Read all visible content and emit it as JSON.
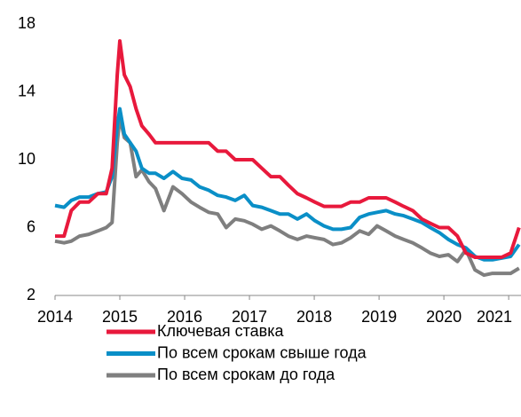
{
  "chart_data": {
    "type": "line",
    "x": [
      2014.0,
      2014.14,
      2014.25,
      2014.38,
      2014.52,
      2014.66,
      2014.79,
      2014.88,
      2014.96,
      2015.0,
      2015.07,
      2015.16,
      2015.25,
      2015.34,
      2015.45,
      2015.55,
      2015.68,
      2015.82,
      2015.96,
      2016.1,
      2016.23,
      2016.37,
      2016.51,
      2016.64,
      2016.78,
      2016.92,
      2017.05,
      2017.19,
      2017.33,
      2017.47,
      2017.6,
      2017.74,
      2017.88,
      2018.01,
      2018.15,
      2018.29,
      2018.42,
      2018.56,
      2018.7,
      2018.84,
      2018.97,
      2019.11,
      2019.25,
      2019.38,
      2019.52,
      2019.66,
      2019.79,
      2019.93,
      2020.07,
      2020.21,
      2020.34,
      2020.48,
      2020.62,
      2020.75,
      2020.89,
      2021.03,
      2021.16
    ],
    "series": [
      {
        "name": "Ключевая ставка",
        "color": "#e8193c",
        "values": [
          5.5,
          5.5,
          7,
          7.5,
          7.5,
          8,
          8,
          9.5,
          15,
          17,
          15,
          14.3,
          13,
          12,
          11.5,
          11,
          11,
          11,
          11,
          11,
          11,
          11,
          10.5,
          10.5,
          10,
          10,
          10,
          9.5,
          9,
          9,
          8.5,
          8,
          7.75,
          7.5,
          7.25,
          7.25,
          7.25,
          7.5,
          7.5,
          7.75,
          7.75,
          7.75,
          7.5,
          7.25,
          7,
          6.5,
          6.25,
          6,
          6,
          5.5,
          4.5,
          4.25,
          4.25,
          4.25,
          4.25,
          4.5,
          6
        ]
      },
      {
        "name": "По всем срокам свыше года",
        "color": "#0a8fc7",
        "values": [
          7.3,
          7.2,
          7.6,
          7.8,
          7.8,
          8,
          8.1,
          9,
          12,
          13,
          11.5,
          11,
          10.5,
          9.5,
          9.2,
          9.2,
          8.9,
          9.3,
          8.9,
          8.8,
          8.4,
          8.2,
          7.9,
          7.8,
          7.6,
          7.9,
          7.3,
          7.2,
          7.0,
          6.8,
          6.8,
          6.5,
          6.8,
          6.4,
          6.1,
          5.9,
          5.9,
          6.0,
          6.6,
          6.8,
          6.9,
          7.0,
          6.8,
          6.7,
          6.5,
          6.3,
          6.0,
          5.7,
          5.3,
          5.0,
          4.8,
          4.3,
          4.1,
          4.1,
          4.2,
          4.3,
          5.0
        ]
      },
      {
        "name": "По всем срокам до года",
        "color": "#7f7f7f",
        "values": [
          5.2,
          5.1,
          5.2,
          5.5,
          5.6,
          5.8,
          6.0,
          6.3,
          11,
          12.5,
          11.3,
          11,
          9.0,
          9.4,
          8.7,
          8.3,
          7.0,
          8.4,
          8.0,
          7.5,
          7.2,
          6.9,
          6.8,
          6.0,
          6.5,
          6.4,
          6.2,
          5.9,
          6.1,
          5.8,
          5.5,
          5.3,
          5.5,
          5.4,
          5.3,
          5.0,
          5.1,
          5.4,
          5.8,
          5.6,
          6.1,
          5.8,
          5.5,
          5.3,
          5.1,
          4.8,
          4.5,
          4.3,
          4.4,
          4.0,
          4.7,
          3.5,
          3.2,
          3.3,
          3.3,
          3.3,
          3.6
        ]
      }
    ],
    "xlim": [
      2014,
      2021.19
    ],
    "xticks": [
      2014,
      2015,
      2016,
      2017,
      2018,
      2019,
      2020,
      2021
    ],
    "ylim": [
      2,
      18
    ],
    "yticks": [
      2,
      6,
      10,
      14,
      18
    ]
  }
}
